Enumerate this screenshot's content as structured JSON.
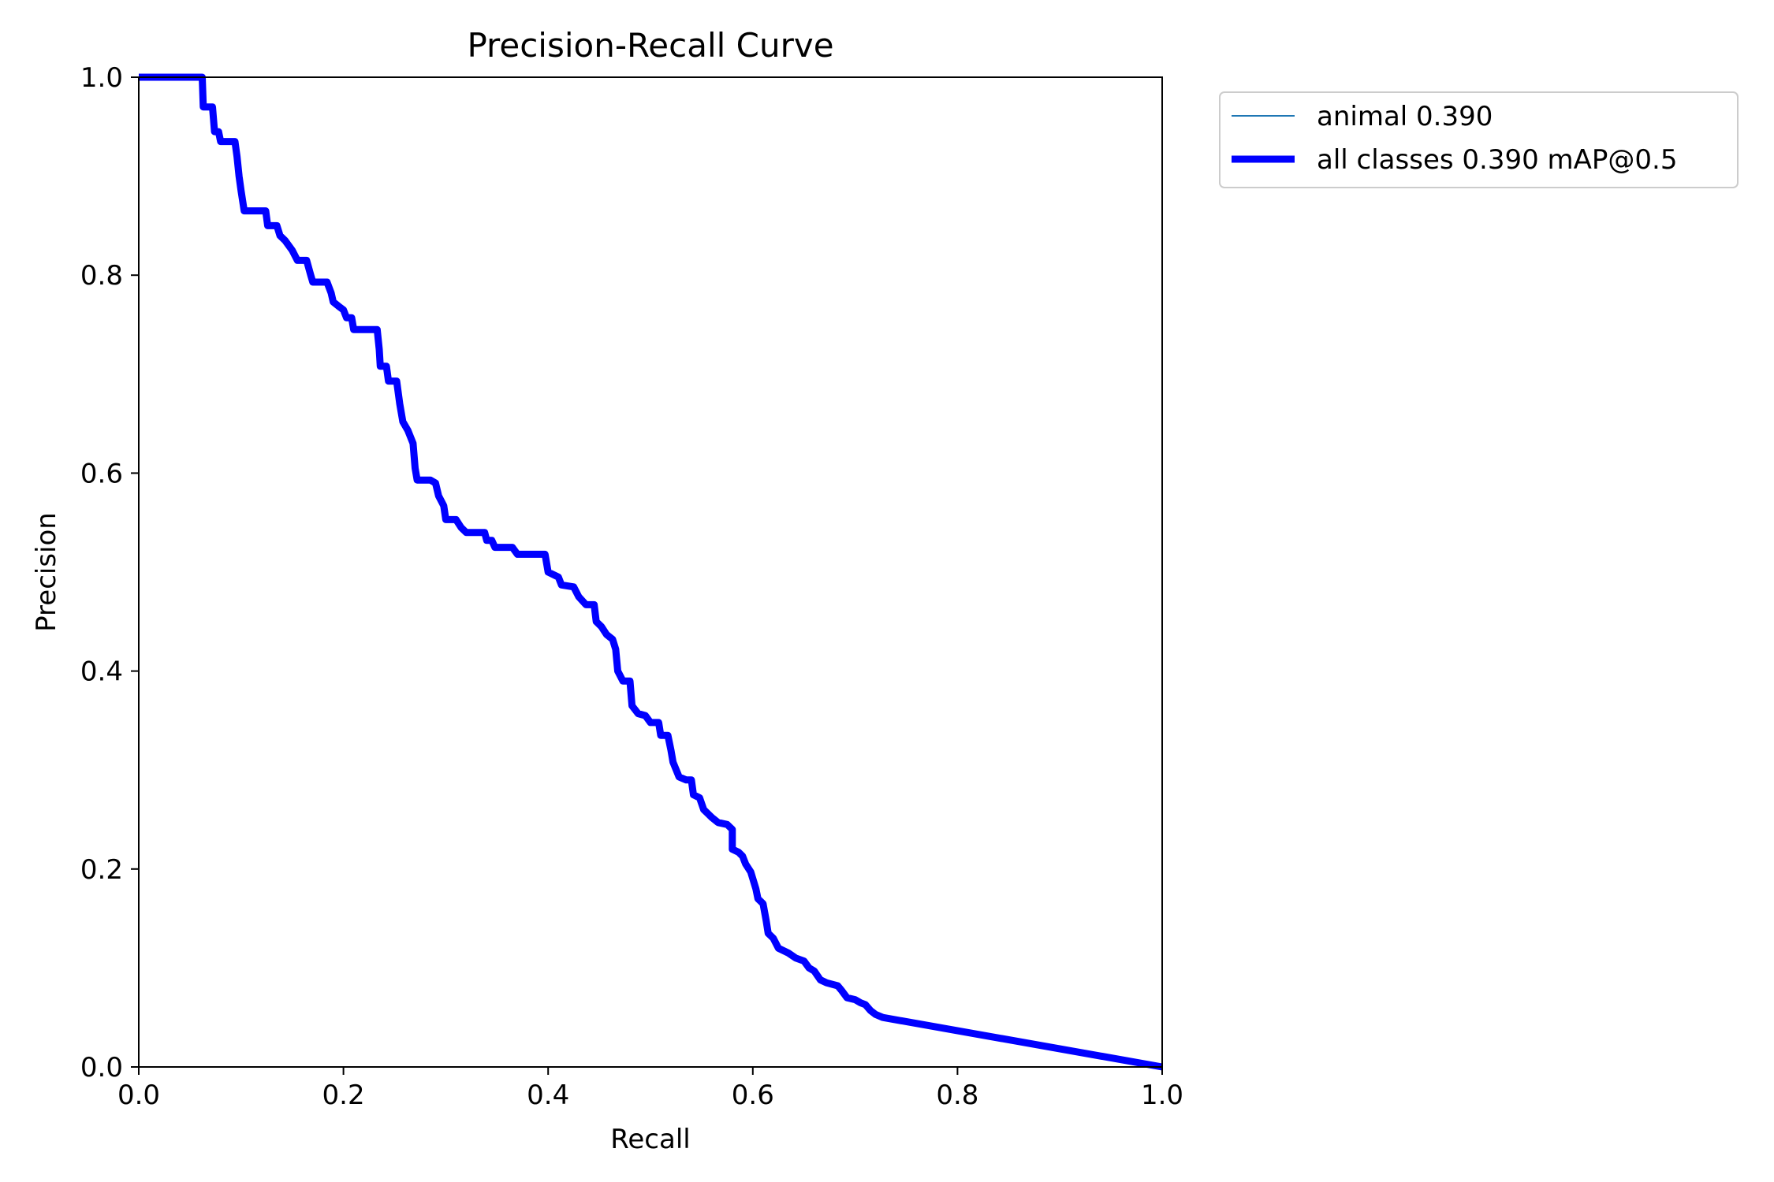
{
  "chart_data": {
    "type": "line",
    "title": "Precision-Recall Curve",
    "xlabel": "Recall",
    "ylabel": "Precision",
    "xlim": [
      0.0,
      1.0
    ],
    "ylim": [
      0.0,
      1.0
    ],
    "xticks": [
      "0.0",
      "0.2",
      "0.4",
      "0.6",
      "0.8",
      "1.0"
    ],
    "yticks": [
      "0.0",
      "0.2",
      "0.4",
      "0.6",
      "0.8",
      "1.0"
    ],
    "grid": false,
    "legend_position": "outside upper right",
    "series": [
      {
        "name": "animal 0.390",
        "color": "#1f77b4",
        "points": [
          [
            0.0,
            1.0
          ],
          [
            0.062,
            1.0
          ],
          [
            0.063,
            0.97
          ],
          [
            0.072,
            0.97
          ],
          [
            0.074,
            0.945
          ],
          [
            0.078,
            0.945
          ],
          [
            0.08,
            0.935
          ],
          [
            0.094,
            0.935
          ],
          [
            0.096,
            0.92
          ],
          [
            0.098,
            0.9
          ],
          [
            0.1,
            0.885
          ],
          [
            0.103,
            0.865
          ],
          [
            0.124,
            0.865
          ],
          [
            0.126,
            0.85
          ],
          [
            0.135,
            0.85
          ],
          [
            0.138,
            0.84
          ],
          [
            0.143,
            0.835
          ],
          [
            0.15,
            0.825
          ],
          [
            0.155,
            0.815
          ],
          [
            0.164,
            0.815
          ],
          [
            0.168,
            0.8
          ],
          [
            0.17,
            0.793
          ],
          [
            0.184,
            0.793
          ],
          [
            0.188,
            0.782
          ],
          [
            0.19,
            0.773
          ],
          [
            0.196,
            0.768
          ],
          [
            0.2,
            0.765
          ],
          [
            0.203,
            0.757
          ],
          [
            0.208,
            0.757
          ],
          [
            0.21,
            0.745
          ],
          [
            0.233,
            0.745
          ],
          [
            0.235,
            0.725
          ],
          [
            0.236,
            0.708
          ],
          [
            0.242,
            0.708
          ],
          [
            0.244,
            0.693
          ],
          [
            0.252,
            0.693
          ],
          [
            0.255,
            0.67
          ],
          [
            0.258,
            0.652
          ],
          [
            0.263,
            0.643
          ],
          [
            0.268,
            0.63
          ],
          [
            0.27,
            0.605
          ],
          [
            0.272,
            0.593
          ],
          [
            0.285,
            0.593
          ],
          [
            0.29,
            0.59
          ],
          [
            0.293,
            0.577
          ],
          [
            0.298,
            0.567
          ],
          [
            0.3,
            0.553
          ],
          [
            0.31,
            0.553
          ],
          [
            0.315,
            0.545
          ],
          [
            0.32,
            0.54
          ],
          [
            0.338,
            0.54
          ],
          [
            0.34,
            0.532
          ],
          [
            0.345,
            0.532
          ],
          [
            0.348,
            0.525
          ],
          [
            0.365,
            0.525
          ],
          [
            0.37,
            0.518
          ],
          [
            0.397,
            0.518
          ],
          [
            0.4,
            0.5
          ],
          [
            0.41,
            0.495
          ],
          [
            0.413,
            0.487
          ],
          [
            0.425,
            0.485
          ],
          [
            0.43,
            0.475
          ],
          [
            0.437,
            0.467
          ],
          [
            0.445,
            0.467
          ],
          [
            0.447,
            0.45
          ],
          [
            0.452,
            0.445
          ],
          [
            0.457,
            0.437
          ],
          [
            0.463,
            0.432
          ],
          [
            0.466,
            0.422
          ],
          [
            0.468,
            0.4
          ],
          [
            0.473,
            0.39
          ],
          [
            0.48,
            0.39
          ],
          [
            0.482,
            0.365
          ],
          [
            0.488,
            0.357
          ],
          [
            0.495,
            0.355
          ],
          [
            0.5,
            0.348
          ],
          [
            0.508,
            0.348
          ],
          [
            0.51,
            0.335
          ],
          [
            0.517,
            0.335
          ],
          [
            0.52,
            0.32
          ],
          [
            0.522,
            0.308
          ],
          [
            0.528,
            0.293
          ],
          [
            0.535,
            0.29
          ],
          [
            0.54,
            0.29
          ],
          [
            0.542,
            0.275
          ],
          [
            0.548,
            0.272
          ],
          [
            0.552,
            0.26
          ],
          [
            0.557,
            0.255
          ],
          [
            0.56,
            0.252
          ],
          [
            0.566,
            0.247
          ],
          [
            0.575,
            0.245
          ],
          [
            0.58,
            0.24
          ],
          [
            0.58,
            0.22
          ],
          [
            0.586,
            0.217
          ],
          [
            0.59,
            0.213
          ],
          [
            0.593,
            0.205
          ],
          [
            0.598,
            0.197
          ],
          [
            0.603,
            0.18
          ],
          [
            0.605,
            0.17
          ],
          [
            0.61,
            0.165
          ],
          [
            0.613,
            0.148
          ],
          [
            0.615,
            0.135
          ],
          [
            0.62,
            0.13
          ],
          [
            0.625,
            0.12
          ],
          [
            0.635,
            0.115
          ],
          [
            0.642,
            0.11
          ],
          [
            0.65,
            0.107
          ],
          [
            0.655,
            0.1
          ],
          [
            0.66,
            0.097
          ],
          [
            0.666,
            0.088
          ],
          [
            0.672,
            0.085
          ],
          [
            0.683,
            0.082
          ],
          [
            0.687,
            0.077
          ],
          [
            0.692,
            0.07
          ],
          [
            0.7,
            0.068
          ],
          [
            0.705,
            0.065
          ],
          [
            0.71,
            0.063
          ],
          [
            0.715,
            0.057
          ],
          [
            0.72,
            0.053
          ],
          [
            0.727,
            0.05
          ],
          [
            1.0,
            0.0
          ]
        ]
      },
      {
        "name": "all classes 0.390 mAP@0.5",
        "color": "#0000ff",
        "points": [
          [
            0.0,
            1.0
          ],
          [
            0.062,
            1.0
          ],
          [
            0.063,
            0.97
          ],
          [
            0.072,
            0.97
          ],
          [
            0.074,
            0.945
          ],
          [
            0.078,
            0.945
          ],
          [
            0.08,
            0.935
          ],
          [
            0.094,
            0.935
          ],
          [
            0.096,
            0.92
          ],
          [
            0.098,
            0.9
          ],
          [
            0.1,
            0.885
          ],
          [
            0.103,
            0.865
          ],
          [
            0.124,
            0.865
          ],
          [
            0.126,
            0.85
          ],
          [
            0.135,
            0.85
          ],
          [
            0.138,
            0.84
          ],
          [
            0.143,
            0.835
          ],
          [
            0.15,
            0.825
          ],
          [
            0.155,
            0.815
          ],
          [
            0.164,
            0.815
          ],
          [
            0.168,
            0.8
          ],
          [
            0.17,
            0.793
          ],
          [
            0.184,
            0.793
          ],
          [
            0.188,
            0.782
          ],
          [
            0.19,
            0.773
          ],
          [
            0.196,
            0.768
          ],
          [
            0.2,
            0.765
          ],
          [
            0.203,
            0.757
          ],
          [
            0.208,
            0.757
          ],
          [
            0.21,
            0.745
          ],
          [
            0.233,
            0.745
          ],
          [
            0.235,
            0.725
          ],
          [
            0.236,
            0.708
          ],
          [
            0.242,
            0.708
          ],
          [
            0.244,
            0.693
          ],
          [
            0.252,
            0.693
          ],
          [
            0.255,
            0.67
          ],
          [
            0.258,
            0.652
          ],
          [
            0.263,
            0.643
          ],
          [
            0.268,
            0.63
          ],
          [
            0.27,
            0.605
          ],
          [
            0.272,
            0.593
          ],
          [
            0.285,
            0.593
          ],
          [
            0.29,
            0.59
          ],
          [
            0.293,
            0.577
          ],
          [
            0.298,
            0.567
          ],
          [
            0.3,
            0.553
          ],
          [
            0.31,
            0.553
          ],
          [
            0.315,
            0.545
          ],
          [
            0.32,
            0.54
          ],
          [
            0.338,
            0.54
          ],
          [
            0.34,
            0.532
          ],
          [
            0.345,
            0.532
          ],
          [
            0.348,
            0.525
          ],
          [
            0.365,
            0.525
          ],
          [
            0.37,
            0.518
          ],
          [
            0.397,
            0.518
          ],
          [
            0.4,
            0.5
          ],
          [
            0.41,
            0.495
          ],
          [
            0.413,
            0.487
          ],
          [
            0.425,
            0.485
          ],
          [
            0.43,
            0.475
          ],
          [
            0.437,
            0.467
          ],
          [
            0.445,
            0.467
          ],
          [
            0.447,
            0.45
          ],
          [
            0.452,
            0.445
          ],
          [
            0.457,
            0.437
          ],
          [
            0.463,
            0.432
          ],
          [
            0.466,
            0.422
          ],
          [
            0.468,
            0.4
          ],
          [
            0.473,
            0.39
          ],
          [
            0.48,
            0.39
          ],
          [
            0.482,
            0.365
          ],
          [
            0.488,
            0.357
          ],
          [
            0.495,
            0.355
          ],
          [
            0.5,
            0.348
          ],
          [
            0.508,
            0.348
          ],
          [
            0.51,
            0.335
          ],
          [
            0.517,
            0.335
          ],
          [
            0.52,
            0.32
          ],
          [
            0.522,
            0.308
          ],
          [
            0.528,
            0.293
          ],
          [
            0.535,
            0.29
          ],
          [
            0.54,
            0.29
          ],
          [
            0.542,
            0.275
          ],
          [
            0.548,
            0.272
          ],
          [
            0.552,
            0.26
          ],
          [
            0.557,
            0.255
          ],
          [
            0.56,
            0.252
          ],
          [
            0.566,
            0.247
          ],
          [
            0.575,
            0.245
          ],
          [
            0.58,
            0.24
          ],
          [
            0.58,
            0.22
          ],
          [
            0.586,
            0.217
          ],
          [
            0.59,
            0.213
          ],
          [
            0.593,
            0.205
          ],
          [
            0.598,
            0.197
          ],
          [
            0.603,
            0.18
          ],
          [
            0.605,
            0.17
          ],
          [
            0.61,
            0.165
          ],
          [
            0.613,
            0.148
          ],
          [
            0.615,
            0.135
          ],
          [
            0.62,
            0.13
          ],
          [
            0.625,
            0.12
          ],
          [
            0.635,
            0.115
          ],
          [
            0.642,
            0.11
          ],
          [
            0.65,
            0.107
          ],
          [
            0.655,
            0.1
          ],
          [
            0.66,
            0.097
          ],
          [
            0.666,
            0.088
          ],
          [
            0.672,
            0.085
          ],
          [
            0.683,
            0.082
          ],
          [
            0.687,
            0.077
          ],
          [
            0.692,
            0.07
          ],
          [
            0.7,
            0.068
          ],
          [
            0.705,
            0.065
          ],
          [
            0.71,
            0.063
          ],
          [
            0.715,
            0.057
          ],
          [
            0.72,
            0.053
          ],
          [
            0.727,
            0.05
          ],
          [
            1.0,
            0.0
          ]
        ]
      }
    ]
  }
}
